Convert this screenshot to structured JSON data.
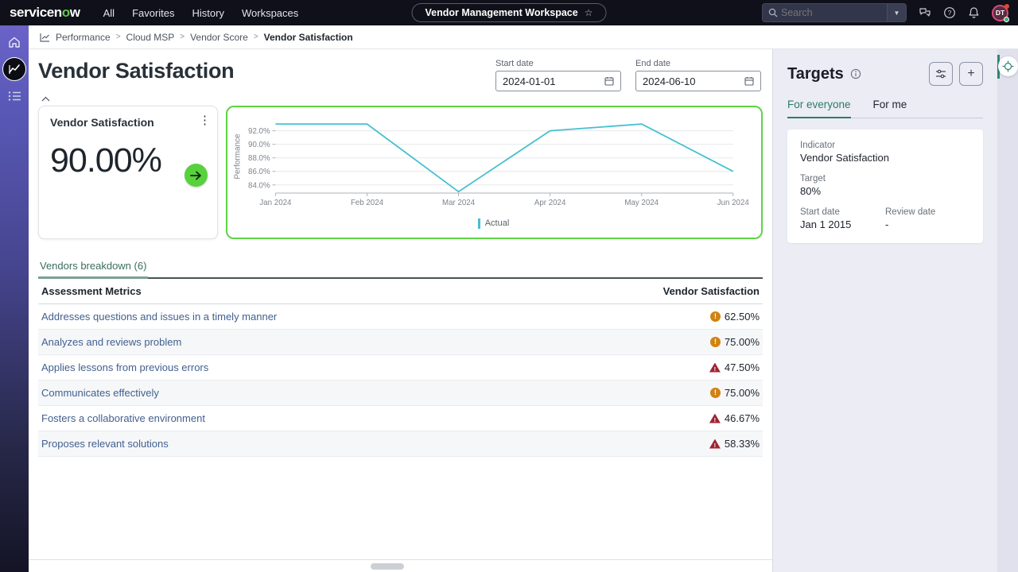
{
  "nav": {
    "logo_text": "servicenow",
    "items": [
      "All",
      "Favorites",
      "History",
      "Workspaces"
    ],
    "workspace_tab": "Vendor Management Workspace",
    "search_placeholder": "Search",
    "avatar_initials": "DT"
  },
  "breadcrumb": {
    "items": [
      "Performance",
      "Cloud MSP",
      "Vendor Score",
      "Vendor Satisfaction"
    ]
  },
  "page": {
    "title": "Vendor Satisfaction",
    "start_date_label": "Start date",
    "start_date": "2024-01-01",
    "end_date_label": "End date",
    "end_date": "2024-06-10"
  },
  "scorecard": {
    "title": "Vendor Satisfaction",
    "value": "90.00%"
  },
  "chart_data": {
    "type": "line",
    "title": "",
    "xlabel": "",
    "ylabel": "Performance",
    "x": [
      "Jan 2024",
      "Feb 2024",
      "Mar 2024",
      "Apr 2024",
      "May 2024",
      "Jun 2024"
    ],
    "series": [
      {
        "name": "Actual",
        "values": [
          93.0,
          93.0,
          83.0,
          92.0,
          93.0,
          86.0
        ]
      }
    ],
    "yticks": [
      84,
      86,
      88,
      90,
      92
    ],
    "ylim": [
      82.8,
      93.6
    ],
    "grid": true,
    "legend_position": "bottom",
    "line_color": "#45c0cf"
  },
  "targets": {
    "title": "Targets",
    "tabs": [
      "For everyone",
      "For me"
    ],
    "card": {
      "indicator_label": "Indicator",
      "indicator": "Vendor Satisfaction",
      "target_label": "Target",
      "target": "80%",
      "start_date_label": "Start date",
      "start_date": "Jan 1 2015",
      "review_date_label": "Review date",
      "review_date": "-"
    }
  },
  "breakdown": {
    "tab_label": "Vendors breakdown (6)",
    "columns": [
      "Assessment Metrics",
      "Vendor Satisfaction"
    ],
    "rows": [
      {
        "metric": "Addresses questions and issues in a timely manner",
        "value": "62.50%",
        "status": "warning"
      },
      {
        "metric": "Analyzes and reviews problem",
        "value": "75.00%",
        "status": "warning"
      },
      {
        "metric": "Applies lessons from previous errors",
        "value": "47.50%",
        "status": "critical"
      },
      {
        "metric": "Communicates effectively",
        "value": "75.00%",
        "status": "warning"
      },
      {
        "metric": "Fosters a collaborative environment",
        "value": "46.67%",
        "status": "critical"
      },
      {
        "metric": "Proposes relevant solutions",
        "value": "58.33%",
        "status": "critical"
      }
    ]
  },
  "colors": {
    "accent_green": "#5fd445",
    "drill_green": "#57d23c",
    "teal_tab": "#2f7c66",
    "chart_line": "#45c0cf",
    "warning": "#d28210",
    "critical": "#a02433",
    "link_blue": "#42608f"
  }
}
